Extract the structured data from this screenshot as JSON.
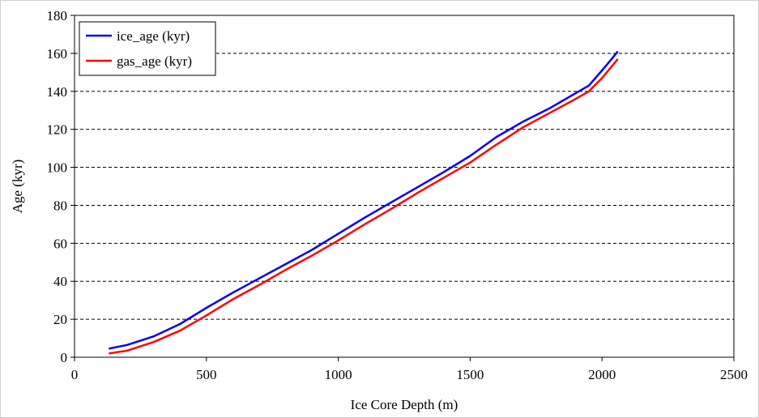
{
  "chart_data": {
    "type": "line",
    "xlabel": "Ice Core Depth (m)",
    "ylabel": "Age (kyr)",
    "xlim": [
      0,
      2500
    ],
    "ylim": [
      0,
      180
    ],
    "xticks": [
      0,
      500,
      1000,
      1500,
      2000,
      2500
    ],
    "yticks": [
      0,
      20,
      40,
      60,
      80,
      100,
      120,
      140,
      160,
      180
    ],
    "xtick_labels": [
      "0",
      "500",
      "1000",
      "1500",
      "2000",
      "2500"
    ],
    "ytick_labels": [
      "0",
      "20",
      "40",
      "60",
      "80",
      "100",
      "120",
      "140",
      "160",
      "180"
    ],
    "grid": "horizontal dashed",
    "legend_position": "top-left",
    "series": [
      {
        "name": "ice_age (kyr)",
        "color": "#0000ff",
        "x": [
          130,
          200,
          300,
          400,
          500,
          600,
          700,
          800,
          900,
          1000,
          1100,
          1200,
          1300,
          1400,
          1500,
          1600,
          1700,
          1800,
          1900,
          1950,
          2000,
          2030,
          2060
        ],
        "y": [
          4.5,
          6.5,
          11,
          17.5,
          26,
          34,
          41.5,
          49,
          56.5,
          65,
          73.5,
          81.5,
          89.5,
          97.5,
          106,
          116,
          124,
          131,
          139,
          143,
          151,
          156,
          161
        ]
      },
      {
        "name": "gas_age (kyr)",
        "color": "#ff0000",
        "x": [
          130,
          200,
          300,
          400,
          500,
          600,
          700,
          800,
          900,
          1000,
          1100,
          1200,
          1300,
          1400,
          1500,
          1600,
          1700,
          1800,
          1900,
          1950,
          2000,
          2030,
          2060
        ],
        "y": [
          2,
          3.5,
          8,
          14,
          22,
          30.5,
          38,
          46,
          53.5,
          61.5,
          70,
          78,
          86.5,
          94.5,
          102.5,
          112,
          121,
          128.5,
          136,
          140,
          147,
          152,
          157
        ]
      }
    ]
  }
}
